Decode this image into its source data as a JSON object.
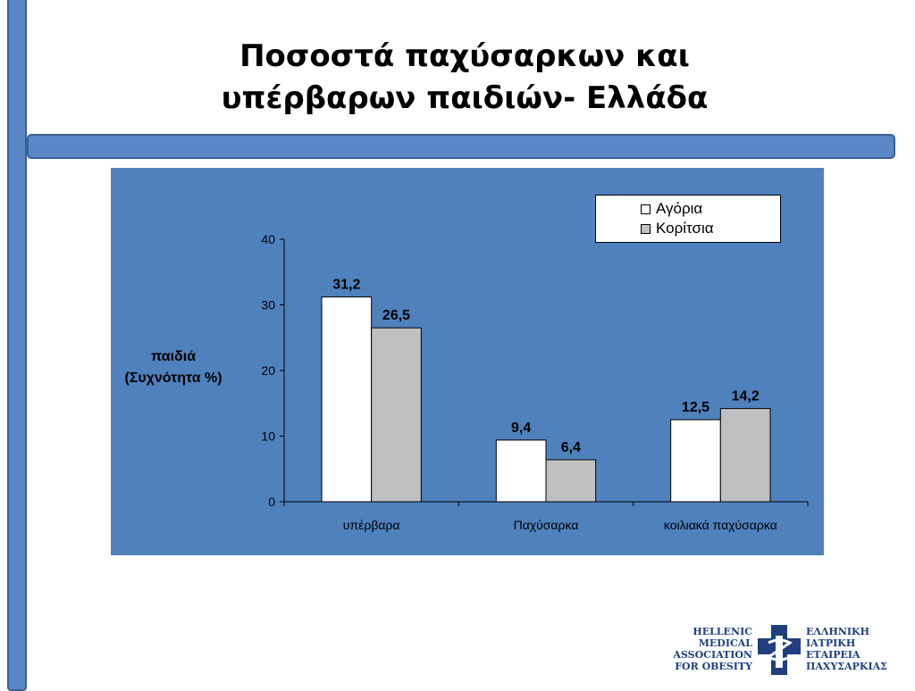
{
  "slide": {
    "title_lines": [
      "Ποσοστά παχύσαρκων και",
      "υπέρβαρων παιδιών- Ελλάδα"
    ],
    "accent_color": "#5a87c5"
  },
  "chart_data": {
    "type": "bar",
    "categories": [
      "υπέρβαρα",
      "Παχύσαρκα",
      "κοιλιακά παχύσαρκα"
    ],
    "series": [
      {
        "name": "Αγόρια",
        "values": [
          31.2,
          9.4,
          12.5
        ],
        "labels": [
          "31,2",
          "9,4",
          "12,5"
        ],
        "color": "#ffffff"
      },
      {
        "name": "Κορίτσια",
        "values": [
          26.5,
          6.4,
          14.2
        ],
        "labels": [
          "26,5",
          "6,4",
          "14,2"
        ],
        "color": "#c0c0c0"
      }
    ],
    "ylabel_lines": [
      "παιδιά",
      "(Συχνότητα %)"
    ],
    "ylim": [
      0,
      40
    ],
    "yticks": [
      0,
      10,
      20,
      30,
      40
    ],
    "grid": false,
    "legend_position": "top-right",
    "plot_background": "#4f81bd"
  },
  "logo": {
    "left_lines": [
      "HELLENIC",
      "MEDICAL",
      "ASSOCIATION",
      "FOR OBESITY"
    ],
    "right_lines": [
      "ΕΛΛΗΝΙΚΗ",
      "ΙΑΤΡΙΚΗ",
      "ΕΤΑΙΡΕΙΑ",
      "ΠΑΧΥΣΑΡΚΙΑΣ"
    ],
    "icon": "medical-cross-icon",
    "color": "#1f3f7f"
  }
}
